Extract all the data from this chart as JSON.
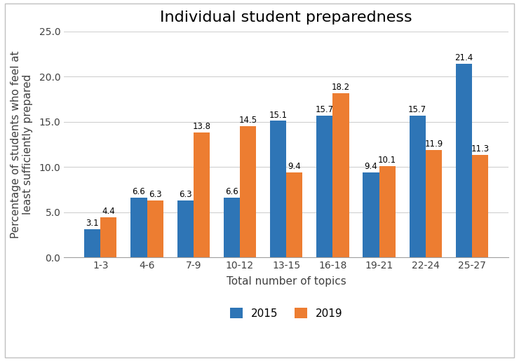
{
  "title": "Individual student preparedness",
  "xlabel": "Total number of topics",
  "ylabel": "Percentage of students who feel at\nleast sufficiently prepared",
  "categories": [
    "1-3",
    "4-6",
    "7-9",
    "10-12",
    "13-15",
    "16-18",
    "19-21",
    "22-24",
    "25-27"
  ],
  "values_2015": [
    3.1,
    6.6,
    6.3,
    6.6,
    15.1,
    15.7,
    9.4,
    15.7,
    21.4
  ],
  "values_2019": [
    4.4,
    6.3,
    13.8,
    14.5,
    9.4,
    18.2,
    10.1,
    11.9,
    11.3
  ],
  "color_2015": "#2E75B6",
  "color_2019": "#ED7D31",
  "ylim": [
    0,
    25.0
  ],
  "yticks": [
    0.0,
    5.0,
    10.0,
    15.0,
    20.0,
    25.0
  ],
  "legend_labels": [
    "2015",
    "2019"
  ],
  "bar_width": 0.35,
  "title_fontsize": 16,
  "label_fontsize": 11,
  "tick_fontsize": 10,
  "annotation_fontsize": 8.5
}
